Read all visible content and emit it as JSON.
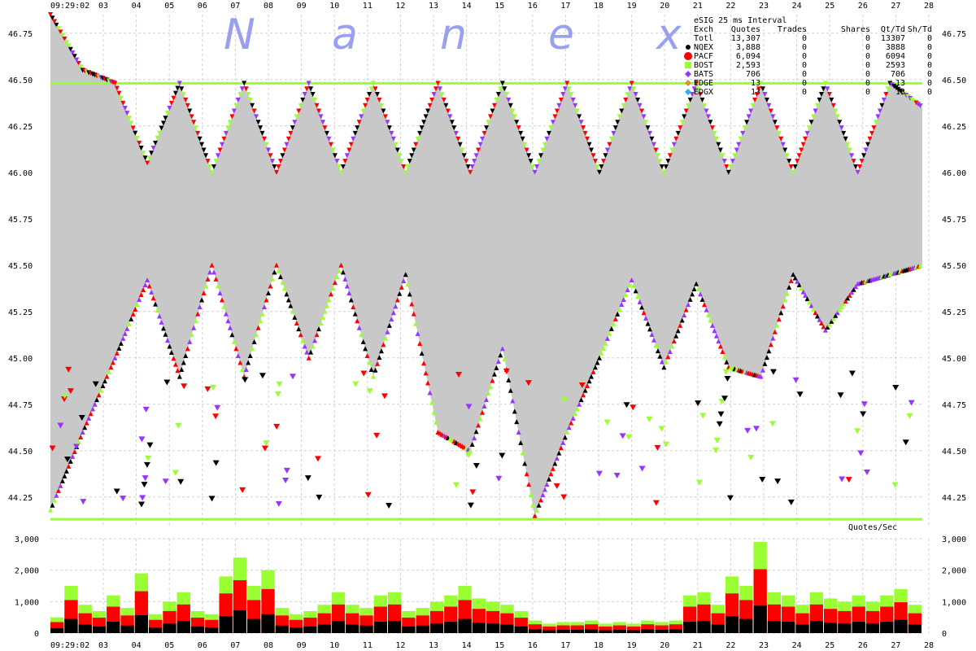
{
  "chart_data": [
    {
      "type": "scatter",
      "interval_label": "eSIG 25 ms Interval",
      "watermark_letters": [
        "N",
        "a",
        "n",
        "e",
        "x"
      ],
      "start_time": "09:29:02",
      "x_ticks": [
        "03",
        "04",
        "05",
        "06",
        "07",
        "08",
        "09",
        "10",
        "11",
        "12",
        "13",
        "14",
        "15",
        "16",
        "17",
        "18",
        "19",
        "20",
        "21",
        "22",
        "23",
        "24",
        "25",
        "26",
        "27",
        "28"
      ],
      "y_ticks": [
        "46.75",
        "46.50",
        "46.25",
        "46.00",
        "45.75",
        "45.50",
        "45.25",
        "45.00",
        "44.75",
        "44.50",
        "44.25"
      ],
      "ylim": [
        44.1,
        46.85
      ],
      "grid": true,
      "legend_header": [
        "Exch",
        "Quotes",
        "Trades",
        "Shares",
        "Qt/Td",
        "Sh/Td"
      ],
      "legend_rows": [
        {
          "exch": "Totl",
          "quotes": "13,307",
          "trades": "0",
          "shares": "0",
          "qt_td": "13307",
          "sh_td": "0",
          "color": "",
          "marker": ""
        },
        {
          "exch": "NQEX",
          "quotes": "3,888",
          "trades": "0",
          "shares": "0",
          "qt_td": "3888",
          "sh_td": "0",
          "color": "#000000",
          "marker": "dot"
        },
        {
          "exch": "PACF",
          "quotes": "6,094",
          "trades": "0",
          "shares": "0",
          "qt_td": "6094",
          "sh_td": "0",
          "color": "#ff0000",
          "marker": "big-dot"
        },
        {
          "exch": "BOST",
          "quotes": "2,593",
          "trades": "0",
          "shares": "0",
          "qt_td": "2593",
          "sh_td": "0",
          "color": "#99ff33",
          "marker": "square"
        },
        {
          "exch": "BATS",
          "quotes": "706",
          "trades": "0",
          "shares": "0",
          "qt_td": "706",
          "sh_td": "0",
          "color": "#9933ff",
          "marker": "diamond"
        },
        {
          "exch": "EDGE",
          "quotes": "13",
          "trades": "0",
          "shares": "0",
          "qt_td": "13",
          "sh_td": "0",
          "color": "#cc9933",
          "marker": "diamond"
        },
        {
          "exch": "EDGX",
          "quotes": "13",
          "trades": "0",
          "shares": "0",
          "qt_td": "13",
          "sh_td": "0",
          "color": "#33aaff",
          "marker": "diamond"
        }
      ],
      "series": [
        {
          "name": "Best ask (upper NBBO edge)",
          "values": [
            46.85,
            46.55,
            46.48,
            46.05,
            46.48,
            46.0,
            46.48,
            46.0,
            46.48,
            46.0,
            46.48,
            46.0,
            46.48,
            46.0,
            46.48,
            46.0,
            46.48,
            46.0,
            46.48,
            46.0,
            46.48,
            46.0,
            46.48,
            46.0,
            46.48,
            46.0,
            46.48,
            46.35
          ]
        },
        {
          "name": "Best bid (lower NBBO edge)",
          "values": [
            44.18,
            44.6,
            45.0,
            45.42,
            44.9,
            45.5,
            44.9,
            45.5,
            45.0,
            45.5,
            44.9,
            45.45,
            44.6,
            44.5,
            45.05,
            44.15,
            44.6,
            45.0,
            45.42,
            44.95,
            45.4,
            44.95,
            44.9,
            45.45,
            45.15,
            45.4,
            45.45,
            45.5
          ]
        }
      ],
      "x": [
        "09:29:02",
        "03",
        "04",
        "05",
        "06",
        "07",
        "08",
        "09",
        "10",
        "11",
        "12",
        "13",
        "14",
        "15",
        "16",
        "17",
        "18",
        "19",
        "20",
        "21",
        "22",
        "23",
        "24",
        "25",
        "26",
        "27",
        "28",
        "28"
      ]
    },
    {
      "type": "bar",
      "title": "Quotes/Sec",
      "y_ticks": [
        "3,000",
        "2,000",
        "1,000",
        "0"
      ],
      "ylim": [
        0,
        3000
      ],
      "x_ticks": [
        "03",
        "04",
        "05",
        "06",
        "07",
        "08",
        "09",
        "10",
        "11",
        "12",
        "13",
        "14",
        "15",
        "16",
        "17",
        "18",
        "19",
        "20",
        "21",
        "22",
        "23",
        "24",
        "25",
        "26",
        "27",
        "28"
      ],
      "start_time": "09:29:02",
      "series": [
        {
          "name": "Totl",
          "values": [
            500,
            1500,
            900,
            700,
            1200,
            800,
            1900,
            600,
            1000,
            1300,
            700,
            600,
            1800,
            2400,
            1500,
            2000,
            800,
            600,
            700,
            900,
            1300,
            900,
            800,
            1200,
            1300,
            700,
            800,
            1000,
            1200,
            1500,
            1100,
            1000,
            900,
            700,
            400,
            300,
            350,
            350,
            400,
            300,
            350,
            300,
            400,
            350,
            400,
            1200,
            1300,
            900,
            1800,
            1500,
            2900,
            1300,
            1200,
            900,
            1300,
            1100,
            1000,
            1200,
            1000,
            1200,
            1400,
            900
          ]
        }
      ]
    }
  ]
}
